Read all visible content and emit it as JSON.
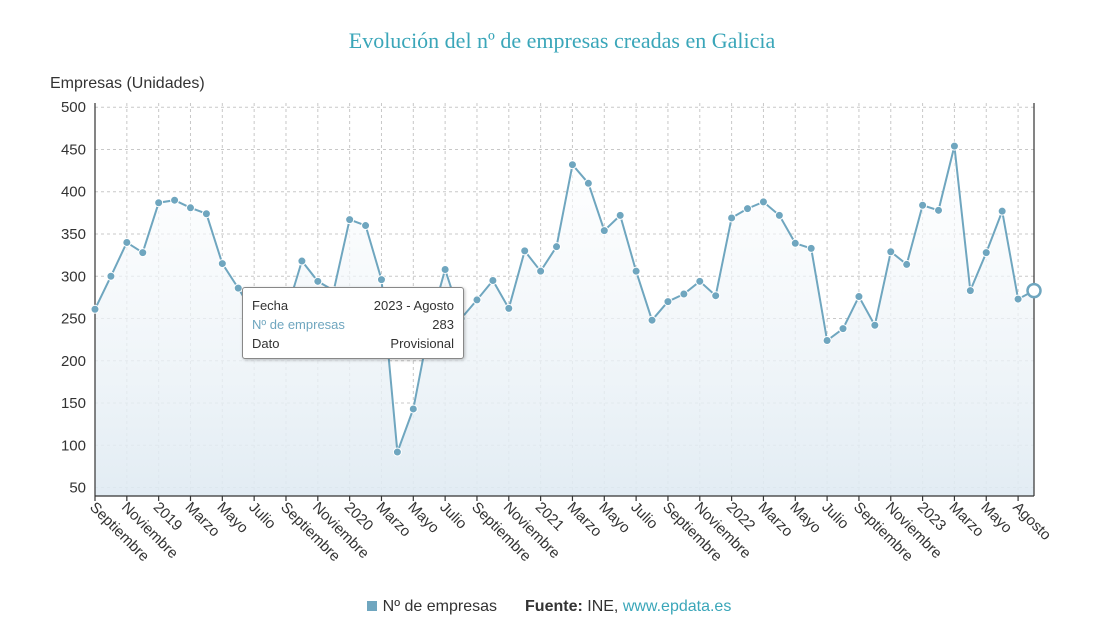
{
  "chart_data": {
    "type": "line",
    "title": "Evolución del nº de empresas creadas en Galicia",
    "ylabel": "Empresas (Unidades)",
    "ylim": [
      40,
      505
    ],
    "yticks": [
      50,
      100,
      150,
      200,
      250,
      300,
      350,
      400,
      450,
      500
    ],
    "grid": true,
    "x_tick_labels": [
      "Septiembre",
      "Noviembre",
      "2019",
      "Marzo",
      "Mayo",
      "Julio",
      "Septiembre",
      "Noviembre",
      "2020",
      "Marzo",
      "Mayo",
      "Julio",
      "Septiembre",
      "Noviembre",
      "2021",
      "Marzo",
      "Mayo",
      "Julio",
      "Septiembre",
      "Noviembre",
      "2022",
      "Marzo",
      "Mayo",
      "Julio",
      "Septiembre",
      "Noviembre",
      "2023",
      "Marzo",
      "Mayo",
      "Agosto"
    ],
    "series": [
      {
        "name": "Nº de empresas",
        "color": "#6fa6bf",
        "x": [
          "2018-09",
          "2018-10",
          "2018-11",
          "2018-12",
          "2019-01",
          "2019-02",
          "2019-03",
          "2019-04",
          "2019-05",
          "2019-06",
          "2019-07",
          "2019-08",
          "2019-09",
          "2019-10",
          "2019-11",
          "2019-12",
          "2020-01",
          "2020-02",
          "2020-03",
          "2020-04",
          "2020-05",
          "2020-06",
          "2020-07",
          "2020-08",
          "2020-09",
          "2020-10",
          "2020-11",
          "2020-12",
          "2021-01",
          "2021-02",
          "2021-03",
          "2021-04",
          "2021-05",
          "2021-06",
          "2021-07",
          "2021-08",
          "2021-09",
          "2021-10",
          "2021-11",
          "2021-12",
          "2022-01",
          "2022-02",
          "2022-03",
          "2022-04",
          "2022-05",
          "2022-06",
          "2022-07",
          "2022-08",
          "2022-09",
          "2022-10",
          "2022-11",
          "2022-12",
          "2023-01",
          "2023-02",
          "2023-03",
          "2023-04",
          "2023-05",
          "2023-06",
          "2023-07",
          "2023-08"
        ],
        "values": [
          261,
          300,
          340,
          328,
          387,
          390,
          381,
          374,
          315,
          286,
          255,
          252,
          256,
          318,
          294,
          283,
          367,
          360,
          296,
          92,
          143,
          240,
          308,
          250,
          272,
          295,
          262,
          330,
          306,
          335,
          432,
          410,
          354,
          372,
          306,
          248,
          270,
          279,
          294,
          277,
          369,
          380,
          388,
          372,
          339,
          333,
          224,
          238,
          276,
          242,
          329,
          314,
          384,
          378,
          454,
          283,
          328,
          377,
          273,
          283
        ]
      }
    ],
    "highlight_index": 59,
    "tooltip": {
      "fecha_label": "Fecha",
      "fecha_value": "2023 - Agosto",
      "series_label": "Nº de empresas",
      "series_value": "283",
      "dato_label": "Dato",
      "dato_value": "Provisional"
    },
    "legend": {
      "entry": "Nº de empresas",
      "source_label": "Fuente:",
      "source_text": "INE, ",
      "source_link": "www.epdata.es"
    },
    "legend_position": "bottom"
  }
}
